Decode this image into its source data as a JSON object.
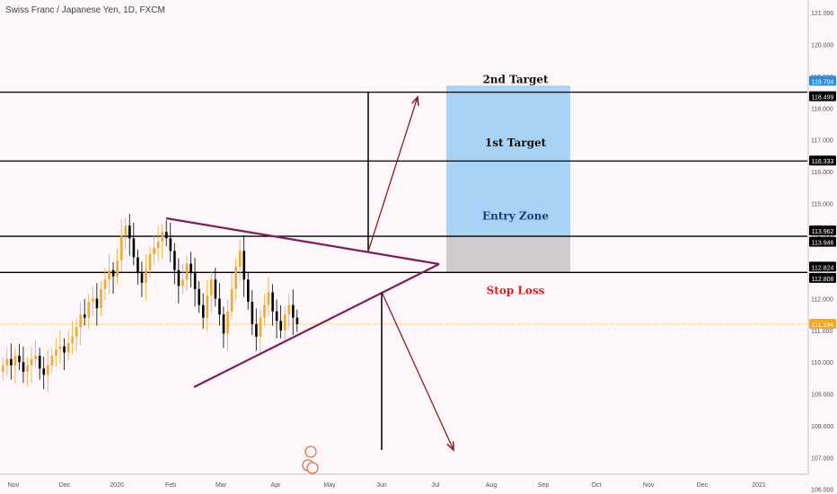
{
  "title": "Swiss Franc / Japanese Yen, 1D, FXCM",
  "colors": {
    "background": "#fdf6fa",
    "up_candle": "#f2a82d",
    "down_candle": "#000000",
    "level_line": "#000000",
    "triangle": "#7a1f5c",
    "arrow": "#8b1d1d",
    "target_box": "#a9d3f5",
    "entry_box": "#cfcbcf",
    "current_price": "#f5a623",
    "stop_label": "#e02020",
    "entry_label": "#1a3d7a"
  },
  "chart_data": {
    "type": "candlestick",
    "title": "Swiss Franc / Japanese Yen, 1D, FXCM",
    "x_ticks": [
      "Nov",
      "Dec",
      "2020",
      "Feb",
      "Mar",
      "Apr",
      "May",
      "Jun",
      "Jul",
      "Aug",
      "Sep",
      "Oct",
      "Nov",
      "Dec",
      "2021"
    ],
    "y_ticks": [
      "106.000",
      "107.000",
      "108.000",
      "109.000",
      "110.000",
      "111.000",
      "112.000",
      "113.000",
      "114.000",
      "115.000",
      "116.000",
      "117.000",
      "118.000",
      "119.000",
      "120.000",
      "121.000"
    ],
    "ylim": [
      105.85,
      121.4
    ],
    "current_price": 111.194,
    "price_close_series": [
      109.9,
      110.1,
      109.9,
      110.2,
      110.0,
      109.7,
      109.9,
      110.1,
      110.2,
      109.8,
      109.6,
      109.9,
      110.2,
      110.4,
      110.5,
      110.3,
      110.6,
      110.8,
      111.1,
      111.5,
      111.4,
      111.9,
      112.0,
      111.7,
      112.3,
      112.6,
      112.9,
      112.7,
      113.2,
      114.0,
      114.3,
      113.9,
      113.3,
      112.8,
      112.5,
      112.9,
      113.4,
      113.6,
      113.8,
      114.1,
      113.9,
      113.5,
      112.9,
      112.4,
      112.6,
      113.1,
      112.8,
      112.3,
      111.8,
      111.4,
      112.1,
      112.6,
      112.0,
      111.5,
      110.9,
      111.6,
      112.3,
      113.0,
      113.5,
      112.6,
      111.9,
      111.2,
      110.8,
      111.4,
      111.8,
      112.2,
      111.6,
      111.3,
      111.0,
      111.5,
      111.8,
      111.4,
      111.2
    ],
    "levels": [
      {
        "price": 118.704,
        "label": "118.704"
      },
      {
        "price": 118.499,
        "label": "118.499"
      },
      {
        "price": 116.333,
        "label": "116.333"
      },
      {
        "price": 113.962,
        "label": "113.962"
      },
      {
        "price": 113.946,
        "label": "113.946"
      },
      {
        "price": 112.824,
        "label": "112.824"
      },
      {
        "price": 112.808,
        "label": "112.808"
      },
      {
        "price": 111.194,
        "label": "111.194"
      }
    ],
    "zones": [
      {
        "name": "target",
        "from": 113.962,
        "to": 118.704
      },
      {
        "name": "entry",
        "from": 112.824,
        "to": 113.962
      }
    ],
    "annotations": [
      {
        "text": "2nd Target",
        "price": 118.9
      },
      {
        "text": "1st Target",
        "price": 116.9
      },
      {
        "text": "Entry Zone",
        "price": 114.6
      },
      {
        "text": "Stop Loss",
        "price": 112.25
      }
    ]
  }
}
